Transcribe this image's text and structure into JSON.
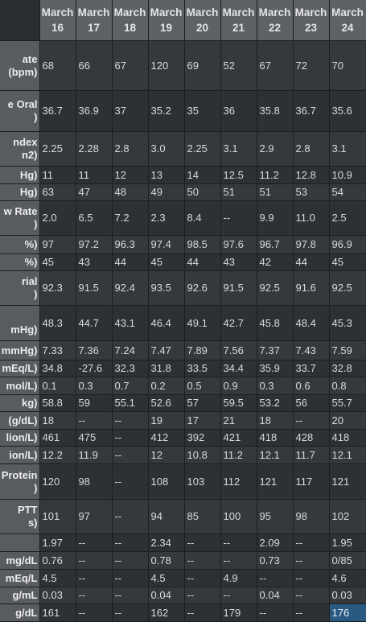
{
  "columns": [
    "March 16",
    "March 17",
    "March 18",
    "March 19",
    "March 20",
    "March 21",
    "March 22",
    "March 23",
    "March 24"
  ],
  "rows": [
    {
      "label": "ate\n(bpm)",
      "h": 62,
      "values": [
        "68",
        "66",
        "67",
        "120",
        "69",
        "52",
        "67",
        "72",
        "70"
      ]
    },
    {
      "label": "e Oral\n)",
      "h": 51,
      "values": [
        "36.7",
        "36.9",
        "37",
        "35.2",
        "35",
        "36",
        "35.8",
        "36.7",
        "35.6"
      ]
    },
    {
      "label": "ndex\nn2)",
      "h": 43,
      "values": [
        "2.25",
        "2.28",
        "2.8",
        "3.0",
        "2.25",
        "3.1",
        "2.9",
        "2.8",
        "3.1"
      ]
    },
    {
      "label": "Hg)",
      "h": 22,
      "values": [
        "11",
        "11",
        "12",
        "13",
        "14",
        "12.5",
        "11.2",
        "12.8",
        "10.9"
      ]
    },
    {
      "label": "Hg)",
      "h": 21,
      "values": [
        "63",
        "47",
        "48",
        "49",
        "50",
        "51",
        "51",
        "53",
        "54"
      ]
    },
    {
      "label": "w Rate\n)",
      "h": 43,
      "values": [
        "2.0",
        "6.5",
        "7.2",
        "2.3",
        "8.4",
        "--",
        "9.9",
        "11.0",
        "2.5"
      ]
    },
    {
      "label": "%)",
      "h": 23,
      "values": [
        "97",
        "97.2",
        "96.3",
        "97.4",
        "98.5",
        "97.6",
        "96.7",
        "97.8",
        "96.9"
      ]
    },
    {
      "label": "%)",
      "h": 21,
      "values": [
        "45",
        "43",
        "44",
        "45",
        "44",
        "43",
        "42",
        "44",
        "45"
      ]
    },
    {
      "label": "rial\n)",
      "h": 43,
      "values": [
        "92.3",
        "91.5",
        "92.4",
        "93.5",
        "92.6",
        "91.5",
        "92.5",
        "91.6",
        "92.5"
      ]
    },
    {
      "label": "\nmHg)",
      "h": 44,
      "values": [
        "48.3",
        "44.7",
        "43.1",
        "46.4",
        "49.1",
        "42.7",
        "45.8",
        "48.4",
        "45.3"
      ]
    },
    {
      "label": "mmHg)",
      "h": 24,
      "values": [
        "7.33",
        "7.36",
        "7.24",
        "7.47",
        "7.89",
        "7.56",
        "7.37",
        "7.43",
        "7.59"
      ]
    },
    {
      "label": "mEq/L)",
      "h": 21,
      "values": [
        "34.8",
        "-27.6",
        "32.3",
        "31.8",
        "33.5",
        "34.4",
        "35.9",
        "33.7",
        "32.8"
      ]
    },
    {
      "label": "mol/L)",
      "h": 22,
      "values": [
        "0.1",
        "0.3",
        "0.7",
        "0.2",
        "0.5",
        "0.9",
        "0.3",
        "0.6",
        "0.8"
      ]
    },
    {
      "label": "kg)",
      "h": 21,
      "values": [
        "58.8",
        "59",
        "55.1",
        "52.6",
        "57",
        "59.5",
        "53.2",
        "56",
        "55.7"
      ]
    },
    {
      "label": "(g/dL)",
      "h": 22,
      "values": [
        "18",
        "--",
        "--",
        "19",
        "17",
        "21",
        "18",
        "--",
        "20"
      ]
    },
    {
      "label": "lion/L)",
      "h": 21,
      "values": [
        "461",
        "475",
        "--",
        "412",
        "392",
        "421",
        "418",
        "428",
        "418"
      ]
    },
    {
      "label": "ion/L)",
      "h": 22,
      "values": [
        "12.2",
        "11.9",
        "--",
        "12",
        "10.8",
        "11.2",
        "12.1",
        "11.7",
        "12.1"
      ]
    },
    {
      "label": "Protein\n)",
      "h": 44,
      "values": [
        "120",
        "98",
        "--",
        "108",
        "103",
        "112",
        "121",
        "117",
        "121"
      ]
    },
    {
      "label": "PTT\ns)",
      "h": 43,
      "values": [
        "101",
        "97",
        "--",
        "94",
        "85",
        "100",
        "95",
        "98",
        "102"
      ]
    },
    {
      "label": "",
      "h": 22,
      "values": [
        "1.97",
        "--",
        "--",
        "2.34",
        "--",
        "--",
        "2.09",
        "--",
        "1.95"
      ]
    },
    {
      "label": "mg/dL",
      "h": 22,
      "values": [
        "0.76",
        "--",
        "--",
        "0.78",
        "--",
        "--",
        "0.73",
        "--",
        "0/85"
      ]
    },
    {
      "label": "mEq/L",
      "h": 22,
      "values": [
        "4.5",
        "--",
        "--",
        "4.5",
        "--",
        "4.9",
        "--",
        "--",
        "4.6"
      ]
    },
    {
      "label": "g/mL",
      "h": 21,
      "values": [
        "0.03",
        "--",
        "--",
        "0.04",
        "--",
        "--",
        "0.04",
        "--",
        "0.03"
      ]
    },
    {
      "label": "g/dL",
      "h": 22,
      "values": [
        "161",
        "--",
        "--",
        "162",
        "--",
        "179",
        "--",
        "--",
        "176"
      ]
    }
  ],
  "selected_cell": {
    "row": 23,
    "col": 8
  },
  "colors": {
    "header_bg": "#5e6165",
    "label_bg": "#585b5f",
    "row_odd": "#36393c",
    "row_even": "#2e3133",
    "selection": "#2a5a82"
  }
}
